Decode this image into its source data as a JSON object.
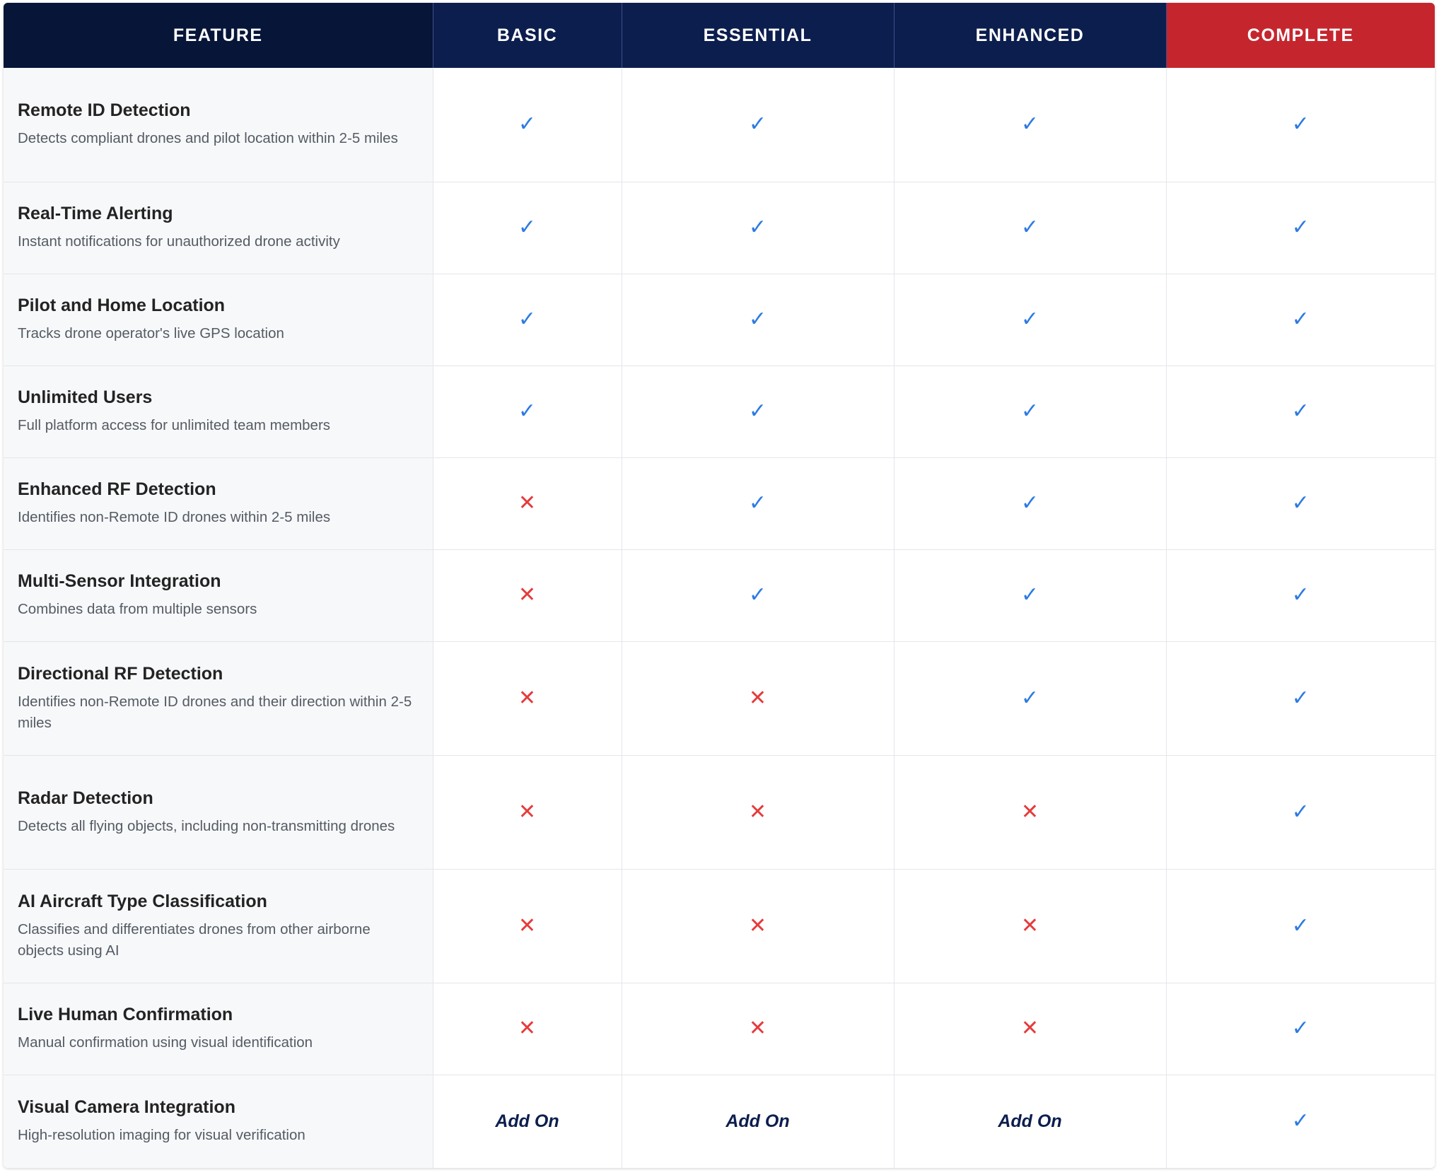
{
  "columns": {
    "feature": "FEATURE",
    "plans": [
      "BASIC",
      "ESSENTIAL",
      "ENHANCED",
      "COMPLETE"
    ]
  },
  "colors": {
    "header_dark": "#061538",
    "header_navy": "#0c1e4e",
    "highlight_red": "#c5262d",
    "check_blue": "#2d7be3",
    "cross_red": "#e63b3b"
  },
  "symbols": {
    "yes": "✓",
    "no": "✕",
    "addon": "Add On"
  },
  "rows": [
    {
      "name": "Remote ID Detection",
      "desc": "Detects compliant drones and pilot location within 2-5 miles",
      "values": [
        "yes",
        "yes",
        "yes",
        "yes"
      ]
    },
    {
      "name": "Real-Time Alerting",
      "desc": "Instant notifications for unauthorized drone activity",
      "values": [
        "yes",
        "yes",
        "yes",
        "yes"
      ]
    },
    {
      "name": "Pilot and Home Location",
      "desc": "Tracks drone operator's live GPS location",
      "values": [
        "yes",
        "yes",
        "yes",
        "yes"
      ]
    },
    {
      "name": "Unlimited Users",
      "desc": "Full platform access for unlimited team members",
      "values": [
        "yes",
        "yes",
        "yes",
        "yes"
      ]
    },
    {
      "name": "Enhanced RF Detection",
      "desc": "Identifies non-Remote ID drones within 2-5 miles",
      "values": [
        "no",
        "yes",
        "yes",
        "yes"
      ]
    },
    {
      "name": "Multi-Sensor Integration",
      "desc": "Combines data from multiple sensors",
      "values": [
        "no",
        "yes",
        "yes",
        "yes"
      ]
    },
    {
      "name": "Directional RF Detection",
      "desc": "Identifies non-Remote ID drones and their direction within 2-5 miles",
      "values": [
        "no",
        "no",
        "yes",
        "yes"
      ]
    },
    {
      "name": "Radar Detection",
      "desc": "Detects all flying objects, including non-transmitting drones",
      "values": [
        "no",
        "no",
        "no",
        "yes"
      ]
    },
    {
      "name": "AI Aircraft Type Classification",
      "desc": "Classifies and differentiates drones from other airborne objects using AI",
      "values": [
        "no",
        "no",
        "no",
        "yes"
      ]
    },
    {
      "name": "Live Human Confirmation",
      "desc": "Manual confirmation using visual identification",
      "values": [
        "no",
        "no",
        "no",
        "yes"
      ]
    },
    {
      "name": "Visual Camera Integration",
      "desc": "High-resolution imaging for visual verification",
      "values": [
        "addon",
        "addon",
        "addon",
        "yes"
      ]
    }
  ]
}
